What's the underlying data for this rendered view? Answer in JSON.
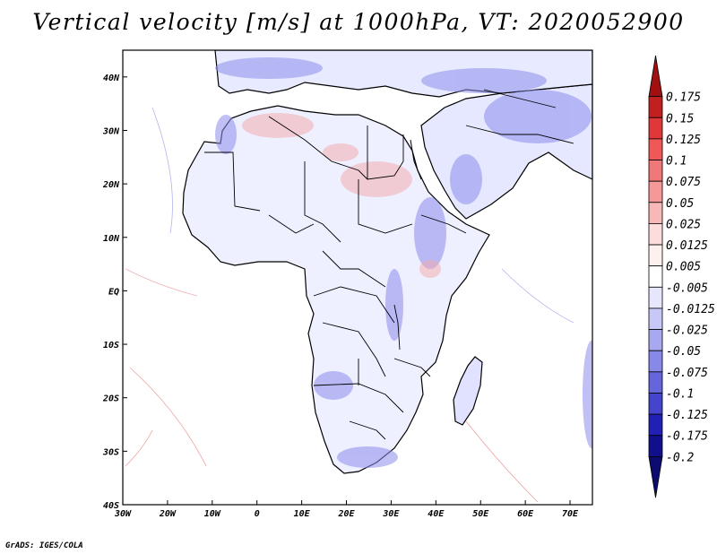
{
  "title": "Vertical velocity [m/s] at 1000hPa, VT: 2020052900",
  "credit": "GrADS: IGES/COLA",
  "map": {
    "lon_range": [
      -30,
      75
    ],
    "lat_range": [
      -40,
      45
    ],
    "lat_ticks": [
      "40N",
      "30N",
      "20N",
      "10N",
      "EQ",
      "10S",
      "20S",
      "30S",
      "40S"
    ],
    "lon_ticks": [
      "30W",
      "20W",
      "10W",
      "0",
      "10E",
      "20E",
      "30E",
      "40E",
      "50E",
      "60E",
      "70E"
    ]
  },
  "colorbar": {
    "levels": [
      "0.175",
      "0.15",
      "0.125",
      "0.1",
      "0.075",
      "0.05",
      "0.025",
      "0.0125",
      "0.005",
      "-0.005",
      "-0.0125",
      "-0.025",
      "-0.05",
      "-0.075",
      "-0.1",
      "-0.125",
      "-0.175",
      "-0.2"
    ],
    "colors": [
      "#a01010",
      "#c02020",
      "#e03838",
      "#f05858",
      "#f07878",
      "#f49898",
      "#f8b8b8",
      "#fcdcdc",
      "#fff0f0",
      "#ffffff",
      "#e6e6fc",
      "#c8c8f8",
      "#a8a8f0",
      "#8888e8",
      "#6666dc",
      "#4444cc",
      "#2020b4",
      "#10108c",
      "#0c0c70"
    ]
  }
}
